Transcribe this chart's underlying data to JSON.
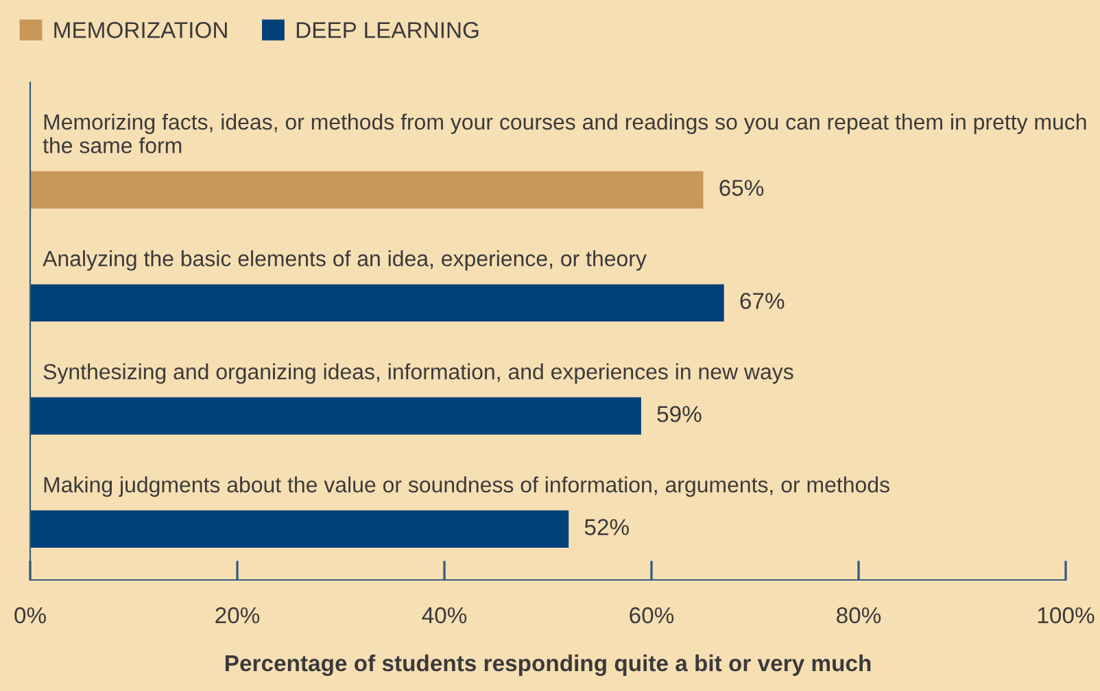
{
  "chart_data": {
    "type": "bar",
    "orientation": "horizontal",
    "categories": [
      "Memorizing facts, ideas, or methods from your courses and readings so you can repeat them in pretty much the same form",
      "Analyzing the basic elements of an idea, experience, or theory",
      "Synthesizing and organizing ideas, information, and experiences in new ways",
      "Making judgments about the value or soundness of information, arguments, or methods"
    ],
    "series": [
      {
        "name": "MEMORIZATION",
        "color": "#c8975a",
        "values": [
          65,
          null,
          null,
          null
        ],
        "value_labels": [
          "65%",
          null,
          null,
          null
        ]
      },
      {
        "name": "DEEP LEARNING",
        "color": "#004179",
        "values": [
          null,
          67,
          59,
          52
        ],
        "value_labels": [
          null,
          "67%",
          "59%",
          "52%"
        ]
      }
    ],
    "xlim": [
      0,
      100
    ],
    "xticks": [
      {
        "value": 0,
        "label": "0%"
      },
      {
        "value": 20,
        "label": "20%"
      },
      {
        "value": 40,
        "label": "40%"
      },
      {
        "value": 60,
        "label": "60%"
      },
      {
        "value": 80,
        "label": "80%"
      },
      {
        "value": 100,
        "label": "100%"
      }
    ],
    "xlabel": "Percentage of students responding quite a bit or very much",
    "legend": "top left",
    "grid": false
  }
}
